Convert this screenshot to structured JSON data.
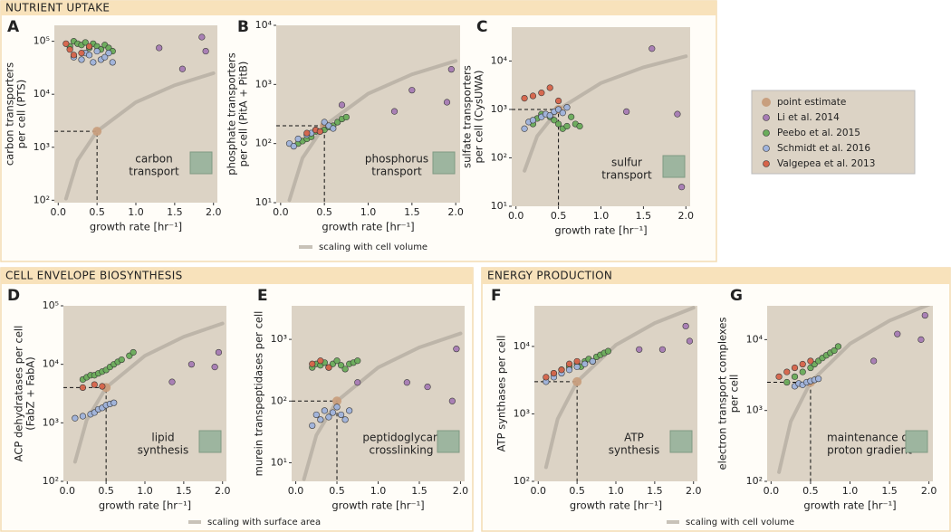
{
  "sections": [
    {
      "title": "NUTRIENT  UPTAKE",
      "trend_label": "scaling with cell volume"
    },
    {
      "title": "CELL ENVELOPE BIOSYNTHESIS",
      "trend_label": "scaling with surface area"
    },
    {
      "title": "ENERGY PRODUCTION",
      "trend_label": "scaling with cell volume"
    }
  ],
  "legend": [
    {
      "name": "point estimate",
      "color": "#c89f7e"
    },
    {
      "name": "Li et al. 2014",
      "color": "#a77cb5"
    },
    {
      "name": "Peebo et al. 2015",
      "color": "#6aac5a"
    },
    {
      "name": "Schmidt et al. 2016",
      "color": "#9fb3dc"
    },
    {
      "name": "Valgepea et al. 2013",
      "color": "#d6644a"
    }
  ],
  "chart_data": [
    {
      "type": "scatter",
      "label": "A",
      "ylabel": [
        "carbon transporters",
        "per cell (PTS)"
      ],
      "xlabel": "growth rate [hr⁻¹]",
      "inset": [
        "carbon",
        "transport"
      ],
      "log_y": true,
      "xlim": [
        -0.05,
        2.05
      ],
      "xticks": [
        {
          "value": 0,
          "label": "0.0"
        },
        0.5,
        {
          "value": 1,
          "label": "1.0"
        },
        1.5,
        {
          "value": 2,
          "label": "2.0"
        }
      ],
      "ylim": [
        90,
        200000
      ],
      "yticks": [
        {
          "value": 100,
          "label": "10²"
        },
        {
          "value": 1000,
          "label": "10³"
        },
        {
          "value": 10000,
          "label": "10⁴"
        },
        {
          "value": 100000,
          "label": "10⁵"
        }
      ],
      "trend": {
        "x": [
          0.1,
          0.25,
          0.5,
          1,
          1.5,
          2
        ],
        "values": [
          107,
          566,
          2000,
          7060,
          14800,
          25000
        ]
      },
      "series": [
        {
          "x": [
            0.5
          ],
          "values": [
            2000
          ]
        },
        {
          "x": [
            1.3,
            1.6,
            1.85,
            1.9
          ],
          "values": [
            75000,
            30000,
            120000,
            65000
          ]
        },
        {
          "x": [
            0.15,
            0.2,
            0.25,
            0.3,
            0.35,
            0.4,
            0.45,
            0.5,
            0.55,
            0.6,
            0.65,
            0.7
          ],
          "values": [
            80000,
            100000,
            90000,
            85000,
            95000,
            75000,
            90000,
            80000,
            70000,
            85000,
            75000,
            65000
          ]
        },
        {
          "x": [
            0.2,
            0.3,
            0.35,
            0.4,
            0.45,
            0.5,
            0.55,
            0.6,
            0.65,
            0.7
          ],
          "values": [
            50000,
            45000,
            60000,
            55000,
            40000,
            65000,
            45000,
            50000,
            60000,
            40000
          ]
        },
        {
          "x": [
            0.1,
            0.15,
            0.2,
            0.3,
            0.4
          ],
          "values": [
            90000,
            70000,
            55000,
            60000,
            80000
          ]
        }
      ]
    },
    {
      "type": "scatter",
      "label": "B",
      "ylabel": [
        "phosphate transporters",
        "per cell (PitA + PitB)"
      ],
      "xlabel": "growth rate [hr⁻¹]",
      "inset": [
        "phosphorus",
        "transport"
      ],
      "log_y": true,
      "xlim": [
        -0.05,
        2.05
      ],
      "xticks": [
        {
          "value": 0,
          "label": "0.0"
        },
        0.5,
        {
          "value": 1,
          "label": "1.0"
        },
        1.5,
        {
          "value": 2,
          "label": "2.0"
        }
      ],
      "ylim": [
        10,
        10000
      ],
      "yticks": [
        {
          "value": 10,
          "label": "10¹"
        },
        {
          "value": 100,
          "label": "10²"
        },
        {
          "value": 1000,
          "label": "10³"
        },
        {
          "value": 10000,
          "label": "10⁴"
        }
      ],
      "trend": {
        "x": [
          0.1,
          0.25,
          0.5,
          1,
          1.5,
          2
        ],
        "values": [
          11,
          57,
          200,
          700,
          1480,
          2500
        ]
      },
      "series": [
        {
          "x": [
            0.5
          ],
          "values": [
            200
          ]
        },
        {
          "x": [
            0.7,
            1.3,
            1.5,
            1.9,
            1.95
          ],
          "values": [
            450,
            350,
            800,
            500,
            1800
          ]
        },
        {
          "x": [
            0.2,
            0.25,
            0.3,
            0.35,
            0.4,
            0.5,
            0.55,
            0.6,
            0.65,
            0.7,
            0.75
          ],
          "values": [
            100,
            110,
            120,
            130,
            160,
            170,
            190,
            200,
            230,
            260,
            280
          ]
        },
        {
          "x": [
            0.1,
            0.15,
            0.2,
            0.3,
            0.35,
            0.4,
            0.45,
            0.5,
            0.55,
            0.6
          ],
          "values": [
            100,
            90,
            120,
            140,
            150,
            170,
            160,
            230,
            200,
            180
          ]
        },
        {
          "x": [
            0.3,
            0.4,
            0.45
          ],
          "values": [
            150,
            170,
            160
          ]
        }
      ]
    },
    {
      "type": "scatter",
      "label": "C",
      "ylabel": [
        "sulfate transporters",
        "per cell (CysUWA)"
      ],
      "xlabel": "growth rate [hr⁻¹]",
      "inset": [
        "sulfur",
        "transport"
      ],
      "log_y": true,
      "xlim": [
        -0.05,
        2.05
      ],
      "xticks": [
        {
          "value": 0,
          "label": "0.0"
        },
        0.5,
        {
          "value": 1,
          "label": "1.0"
        },
        1.5,
        {
          "value": 2,
          "label": "2.0"
        }
      ],
      "ylim": [
        10,
        50000
      ],
      "yticks": [
        {
          "value": 10,
          "label": "10¹"
        },
        {
          "value": 100,
          "label": "10²"
        },
        {
          "value": 1000,
          "label": "10³"
        },
        {
          "value": 10000,
          "label": "10⁴"
        }
      ],
      "trend": {
        "x": [
          0.1,
          0.25,
          0.5,
          1,
          1.5,
          2
        ],
        "values": [
          54,
          280,
          1000,
          3500,
          7400,
          12500
        ]
      },
      "series": [
        {
          "x": [
            0.5
          ],
          "values": [
            1000
          ]
        },
        {
          "x": [
            1.3,
            1.6,
            1.9,
            1.95
          ],
          "values": [
            900,
            18000,
            800,
            25
          ]
        },
        {
          "x": [
            0.2,
            0.25,
            0.3,
            0.4,
            0.45,
            0.5,
            0.55,
            0.6,
            0.65,
            0.7,
            0.75
          ],
          "values": [
            500,
            650,
            800,
            700,
            600,
            500,
            400,
            450,
            700,
            500,
            450
          ]
        },
        {
          "x": [
            0.1,
            0.15,
            0.2,
            0.3,
            0.35,
            0.4,
            0.45,
            0.5,
            0.55,
            0.6
          ],
          "values": [
            400,
            550,
            600,
            700,
            800,
            750,
            900,
            1000,
            850,
            1100
          ]
        },
        {
          "x": [
            0.1,
            0.2,
            0.3,
            0.4,
            0.5
          ],
          "values": [
            1700,
            1900,
            2200,
            2800,
            1500
          ]
        }
      ]
    },
    {
      "type": "scatter",
      "label": "D",
      "ylabel": [
        "ACP dehydratases per cell",
        "(FabZ + FabA)"
      ],
      "xlabel": "growth rate [hr⁻¹]",
      "inset": [
        "lipid",
        "synthesis"
      ],
      "log_y": true,
      "xlim": [
        -0.05,
        2.05
      ],
      "xticks": [
        {
          "value": 0,
          "label": "0.0"
        },
        0.5,
        {
          "value": 1,
          "label": "1.0"
        },
        1.5,
        {
          "value": 2,
          "label": "2.0"
        }
      ],
      "ylim": [
        100,
        100000
      ],
      "yticks": [
        {
          "value": 100,
          "label": "10²"
        },
        {
          "value": 1000,
          "label": "10³"
        },
        {
          "value": 10000,
          "label": "10⁴"
        },
        {
          "value": 100000,
          "label": "10⁵"
        }
      ],
      "trend": {
        "x": [
          0.1,
          0.25,
          0.5,
          1,
          1.5,
          2
        ],
        "values": [
          216,
          1120,
          4000,
          14000,
          29600,
          50000
        ]
      },
      "series": [
        {
          "x": [
            0.5
          ],
          "values": [
            4000
          ]
        },
        {
          "x": [
            1.35,
            1.6,
            1.9,
            1.95
          ],
          "values": [
            5000,
            10000,
            9000,
            16000
          ]
        },
        {
          "x": [
            0.2,
            0.25,
            0.3,
            0.35,
            0.4,
            0.45,
            0.5,
            0.55,
            0.6,
            0.65,
            0.7,
            0.8,
            0.85
          ],
          "values": [
            5500,
            6000,
            6500,
            6500,
            7000,
            7500,
            8000,
            9000,
            10000,
            11000,
            12000,
            14000,
            16000
          ]
        },
        {
          "x": [
            0.1,
            0.2,
            0.3,
            0.35,
            0.4,
            0.45,
            0.5,
            0.55,
            0.6
          ],
          "values": [
            1200,
            1300,
            1400,
            1500,
            1700,
            1800,
            2000,
            2100,
            2200
          ]
        },
        {
          "x": [
            0.2,
            0.35,
            0.45
          ],
          "values": [
            4000,
            4500,
            4200
          ]
        }
      ]
    },
    {
      "type": "scatter",
      "label": "E",
      "ylabel": [
        "murein transpeptidases per cell"
      ],
      "xlabel": "growth rate [hr⁻¹]",
      "inset": [
        "peptidoglycan",
        "crosslinking"
      ],
      "log_y": true,
      "xlim": [
        -0.05,
        2.05
      ],
      "xticks": [
        {
          "value": 0,
          "label": "0.0"
        },
        0.5,
        {
          "value": 1,
          "label": "1.0"
        },
        1.5,
        {
          "value": 2,
          "label": "2.0"
        }
      ],
      "ylim": [
        5,
        3500
      ],
      "yticks": [
        {
          "value": 10,
          "label": "10¹"
        },
        {
          "value": 100,
          "label": "10²"
        },
        {
          "value": 1000,
          "label": "10³"
        }
      ],
      "trend": {
        "x": [
          0.1,
          0.25,
          0.5,
          1,
          1.5,
          2
        ],
        "values": [
          5.4,
          28,
          100,
          350,
          740,
          1250
        ]
      },
      "series": [
        {
          "x": [
            0.5
          ],
          "values": [
            100
          ]
        },
        {
          "x": [
            0.75,
            1.35,
            1.6,
            1.9,
            1.95
          ],
          "values": [
            200,
            200,
            170,
            100,
            700
          ]
        },
        {
          "x": [
            0.2,
            0.25,
            0.3,
            0.35,
            0.4,
            0.45,
            0.5,
            0.55,
            0.6,
            0.65,
            0.7,
            0.75
          ],
          "values": [
            350,
            400,
            380,
            420,
            350,
            400,
            450,
            380,
            330,
            400,
            420,
            450
          ]
        },
        {
          "x": [
            0.2,
            0.25,
            0.3,
            0.35,
            0.4,
            0.45,
            0.5,
            0.55,
            0.6,
            0.65
          ],
          "values": [
            40,
            60,
            50,
            70,
            55,
            65,
            80,
            60,
            50,
            70
          ]
        },
        {
          "x": [
            0.2,
            0.3,
            0.4
          ],
          "values": [
            400,
            450,
            350
          ]
        }
      ]
    },
    {
      "type": "scatter",
      "label": "F",
      "ylabel": [
        "ATP synthases per cell"
      ],
      "xlabel": "growth rate [hr⁻¹]",
      "inset": [
        "ATP",
        "synthesis"
      ],
      "log_y": true,
      "xlim": [
        -0.05,
        2.05
      ],
      "xticks": [
        {
          "value": 0,
          "label": "0.0"
        },
        0.5,
        {
          "value": 1,
          "label": "1.0"
        },
        1.5,
        {
          "value": 2,
          "label": "2.0"
        }
      ],
      "ylim": [
        100,
        40000
      ],
      "yticks": [
        {
          "value": 100,
          "label": "10²"
        },
        {
          "value": 1000,
          "label": "10³"
        },
        {
          "value": 10000,
          "label": "10⁴"
        }
      ],
      "trend": {
        "x": [
          0.1,
          0.25,
          0.5,
          1,
          1.5,
          2
        ],
        "values": [
          162,
          840,
          3000,
          10500,
          22200,
          37500
        ]
      },
      "series": [
        {
          "x": [
            0.5
          ],
          "values": [
            3000
          ]
        },
        {
          "x": [
            1.3,
            1.6,
            1.9,
            1.95
          ],
          "values": [
            9000,
            9000,
            20000,
            12000
          ]
        },
        {
          "x": [
            0.2,
            0.3,
            0.4,
            0.5,
            0.55,
            0.6,
            0.65,
            0.7,
            0.75,
            0.8,
            0.85,
            0.9
          ],
          "values": [
            4000,
            4500,
            5000,
            5500,
            5000,
            6000,
            6500,
            6000,
            7000,
            7500,
            8000,
            8500
          ]
        },
        {
          "x": [
            0.1,
            0.2,
            0.3,
            0.4,
            0.5,
            0.6,
            0.7
          ],
          "values": [
            3000,
            3500,
            4000,
            4500,
            5000,
            5500,
            6000
          ]
        },
        {
          "x": [
            0.1,
            0.2,
            0.3,
            0.4,
            0.5
          ],
          "values": [
            3500,
            4000,
            4500,
            5500,
            6000
          ]
        }
      ]
    },
    {
      "type": "scatter",
      "label": "G",
      "ylabel": [
        "electron transport complexes",
        "per cell"
      ],
      "xlabel": "growth rate [hr⁻¹]",
      "inset": [
        "maintenance of",
        "proton gradient"
      ],
      "log_y": true,
      "xlim": [
        -0.05,
        2.05
      ],
      "xticks": [
        {
          "value": 0,
          "label": "0.0"
        },
        0.5,
        {
          "value": 1,
          "label": "1.0"
        },
        1.5,
        {
          "value": 2,
          "label": "2.0"
        }
      ],
      "ylim": [
        100,
        30000
      ],
      "yticks": [
        {
          "value": 100,
          "label": "10²"
        },
        {
          "value": 1000,
          "label": "10³"
        },
        {
          "value": 10000,
          "label": "10⁴"
        }
      ],
      "trend": {
        "x": [
          0.1,
          0.25,
          0.5,
          1,
          1.5,
          2
        ],
        "values": [
          135,
          700,
          2500,
          8750,
          18500,
          31250
        ]
      },
      "series": [
        {
          "x": [
            0.5
          ],
          "values": [
            2500
          ]
        },
        {
          "x": [
            1.3,
            1.6,
            1.9,
            1.95
          ],
          "values": [
            5000,
            12000,
            10000,
            22000
          ]
        },
        {
          "x": [
            0.2,
            0.3,
            0.4,
            0.5,
            0.55,
            0.6,
            0.65,
            0.7,
            0.75,
            0.8,
            0.85
          ],
          "values": [
            2500,
            3000,
            3500,
            4000,
            4500,
            5000,
            5500,
            6000,
            6500,
            7000,
            8000
          ]
        },
        {
          "x": [
            0.3,
            0.35,
            0.4,
            0.45,
            0.5,
            0.55,
            0.6
          ],
          "values": [
            2200,
            2400,
            2300,
            2500,
            2600,
            2700,
            2800
          ]
        },
        {
          "x": [
            0.1,
            0.2,
            0.3,
            0.4,
            0.5
          ],
          "values": [
            3000,
            3500,
            4000,
            4500,
            5000
          ]
        }
      ]
    }
  ]
}
